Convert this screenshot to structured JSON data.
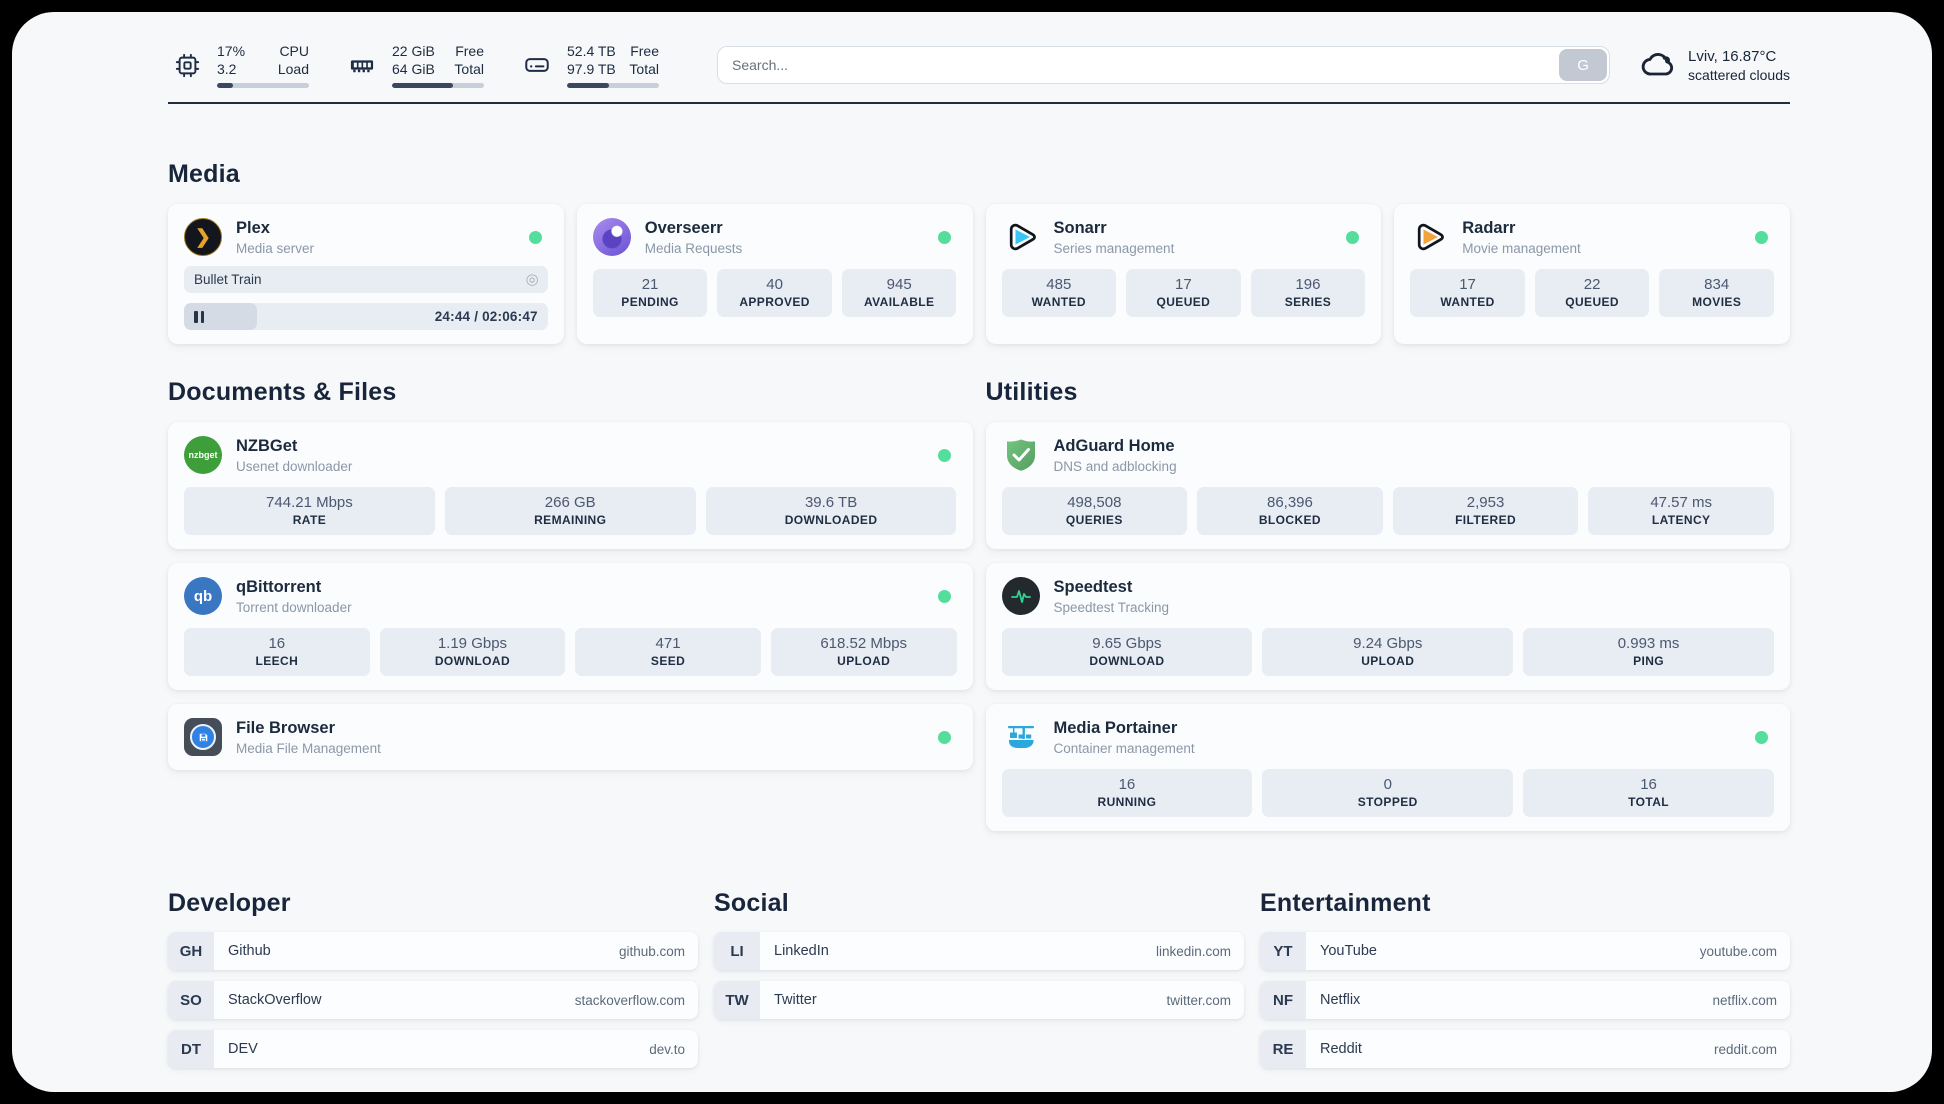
{
  "topbar": {
    "metrics": [
      {
        "icon": "cpu-icon",
        "value_a": "17%",
        "value_b": "3.2",
        "label_a": "CPU",
        "label_b": "Load",
        "progress": 17
      },
      {
        "icon": "ram-icon",
        "value_a": "22 GiB",
        "value_b": "64 GiB",
        "label_a": "Free",
        "label_b": "Total",
        "progress": 66
      },
      {
        "icon": "disk-icon",
        "value_a": "52.4 TB",
        "value_b": "97.9 TB",
        "label_a": "Free",
        "label_b": "Total",
        "progress": 46
      }
    ],
    "search": {
      "placeholder": "Search...",
      "button_label": "G"
    },
    "weather": {
      "icon": "cloud-icon",
      "location": "Lviv, 16.87°C",
      "condition": "scattered clouds"
    }
  },
  "media": {
    "title": "Media",
    "plex": {
      "icon": "plex-icon",
      "name": "Plex",
      "desc": "Media server",
      "online": true,
      "now_playing": "Bullet Train",
      "time": "24:44 / 02:06:47",
      "progress": 20
    },
    "overseerr": {
      "icon": "overseerr-icon",
      "name": "Overseerr",
      "desc": "Media Requests",
      "online": true,
      "stats": [
        {
          "value": "21",
          "label": "PENDING"
        },
        {
          "value": "40",
          "label": "APPROVED"
        },
        {
          "value": "945",
          "label": "AVAILABLE"
        }
      ]
    },
    "sonarr": {
      "icon": "sonarr-icon",
      "name": "Sonarr",
      "desc": "Series management",
      "online": true,
      "stats": [
        {
          "value": "485",
          "label": "WANTED"
        },
        {
          "value": "17",
          "label": "QUEUED"
        },
        {
          "value": "196",
          "label": "SERIES"
        }
      ]
    },
    "radarr": {
      "icon": "radarr-icon",
      "name": "Radarr",
      "desc": "Movie management",
      "online": true,
      "stats": [
        {
          "value": "17",
          "label": "WANTED"
        },
        {
          "value": "22",
          "label": "QUEUED"
        },
        {
          "value": "834",
          "label": "MOVIES"
        }
      ]
    }
  },
  "documents": {
    "title": "Documents & Files",
    "nzbget": {
      "icon": "nzbget-icon",
      "name": "NZBGet",
      "desc": "Usenet downloader",
      "online": true,
      "stats": [
        {
          "value": "744.21 Mbps",
          "label": "RATE"
        },
        {
          "value": "266 GB",
          "label": "REMAINING"
        },
        {
          "value": "39.6 TB",
          "label": "DOWNLOADED"
        }
      ]
    },
    "qbittorrent": {
      "icon": "qbittorrent-icon",
      "name": "qBittorrent",
      "desc": "Torrent downloader",
      "online": true,
      "stats": [
        {
          "value": "16",
          "label": "LEECH"
        },
        {
          "value": "1.19 Gbps",
          "label": "DOWNLOAD"
        },
        {
          "value": "471",
          "label": "SEED"
        },
        {
          "value": "618.52 Mbps",
          "label": "UPLOAD"
        }
      ]
    },
    "filebrowser": {
      "icon": "filebrowser-icon",
      "name": "File Browser",
      "desc": "Media File Management",
      "online": true
    }
  },
  "utilities": {
    "title": "Utilities",
    "adguard": {
      "icon": "adguard-icon",
      "name": "AdGuard Home",
      "desc": "DNS and adblocking",
      "stats": [
        {
          "value": "498,508",
          "label": "QUERIES"
        },
        {
          "value": "86,396",
          "label": "BLOCKED"
        },
        {
          "value": "2,953",
          "label": "FILTERED"
        },
        {
          "value": "47.57 ms",
          "label": "LATENCY"
        }
      ]
    },
    "speedtest": {
      "icon": "speedtest-icon",
      "name": "Speedtest",
      "desc": "Speedtest Tracking",
      "stats": [
        {
          "value": "9.65 Gbps",
          "label": "DOWNLOAD"
        },
        {
          "value": "9.24 Gbps",
          "label": "UPLOAD"
        },
        {
          "value": "0.993 ms",
          "label": "PING"
        }
      ]
    },
    "portainer": {
      "icon": "portainer-icon",
      "name": "Media Portainer",
      "desc": "Container management",
      "online": true,
      "stats": [
        {
          "value": "16",
          "label": "RUNNING"
        },
        {
          "value": "0",
          "label": "STOPPED"
        },
        {
          "value": "16",
          "label": "TOTAL"
        }
      ]
    }
  },
  "links": {
    "developer": {
      "title": "Developer",
      "items": [
        {
          "abbr": "GH",
          "name": "Github",
          "url": "github.com"
        },
        {
          "abbr": "SO",
          "name": "StackOverflow",
          "url": "stackoverflow.com"
        },
        {
          "abbr": "DT",
          "name": "DEV",
          "url": "dev.to"
        }
      ]
    },
    "social": {
      "title": "Social",
      "items": [
        {
          "abbr": "LI",
          "name": "LinkedIn",
          "url": "linkedin.com"
        },
        {
          "abbr": "TW",
          "name": "Twitter",
          "url": "twitter.com"
        }
      ]
    },
    "entertainment": {
      "title": "Entertainment",
      "items": [
        {
          "abbr": "YT",
          "name": "YouTube",
          "url": "youtube.com"
        },
        {
          "abbr": "NF",
          "name": "Netflix",
          "url": "netflix.com"
        },
        {
          "abbr": "RE",
          "name": "Reddit",
          "url": "reddit.com"
        }
      ]
    }
  },
  "colors": {
    "status_online": "#55dd9c",
    "accent_dark": "#222d3e",
    "stat_box": "#e8ecf3"
  }
}
